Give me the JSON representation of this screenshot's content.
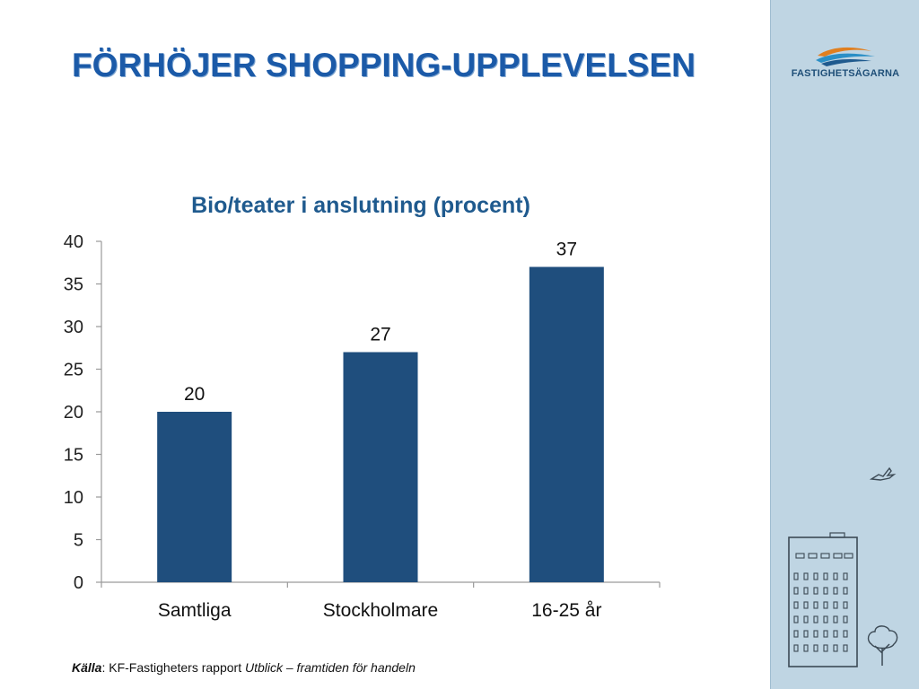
{
  "slide": {
    "title": "FÖRHÖJER SHOPPING-UPPLEVELSEN"
  },
  "brand": {
    "logo_text": "FASTIGHETSÄGARNA",
    "accent_color": "#1b5aa8",
    "sidebar_color": "#bfd5e3",
    "bar_color": "#1f4e7d"
  },
  "source": {
    "label": "Källa",
    "text": ": KF-Fastigheters rapport ",
    "publication": "Utblick – framtiden för handeln"
  },
  "chart_data": {
    "type": "bar",
    "title": "Bio/teater i anslutning (procent)",
    "categories": [
      "Samtliga",
      "Stockholmare",
      "16-25 år"
    ],
    "values": [
      20,
      27,
      37
    ],
    "data_labels": [
      "20",
      "27",
      "37"
    ],
    "ylim": [
      0,
      40
    ],
    "yticks": [
      0,
      5,
      10,
      15,
      20,
      25,
      30,
      35,
      40
    ],
    "ytick_labels": [
      "0",
      "5",
      "10",
      "15",
      "20",
      "25",
      "30",
      "35",
      "40"
    ],
    "xlabel": "",
    "ylabel": "",
    "grid": false,
    "legend": false
  }
}
